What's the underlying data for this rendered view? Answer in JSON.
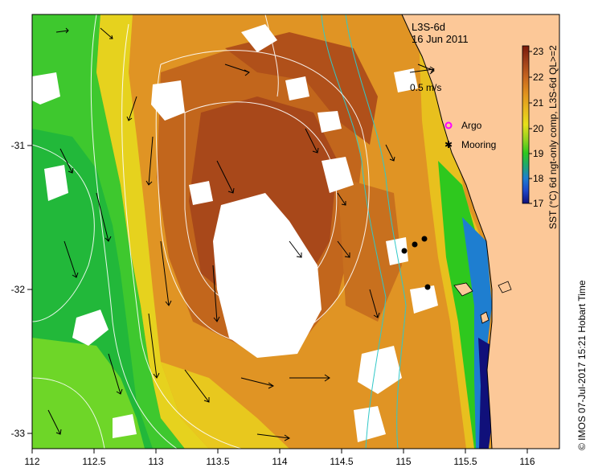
{
  "map": {
    "title_line1": "L3S-6d",
    "title_line2": "16 Jun 2011",
    "scale_label": "0.5 m/s",
    "x_ticks": [
      "112",
      "112.5",
      "113",
      "113.5",
      "114",
      "114.5",
      "115",
      "115.5",
      "116"
    ],
    "y_ticks": [
      "-31",
      "-32",
      "-33"
    ],
    "legend": [
      {
        "label": "Argo",
        "color": "#ff00ff"
      },
      {
        "label": "Mooring",
        "color": "#000000"
      }
    ],
    "colorbar": {
      "label": "SST (°C) 6d ngt-only comp, L3S-6d QL>=2",
      "ticks": [
        "23",
        "22",
        "21",
        "20",
        "19",
        "18",
        "17"
      ],
      "colors": [
        "#7a1a0a",
        "#a0401a",
        "#c8661e",
        "#e0901e",
        "#e8b81e",
        "#e6e01a",
        "#8ed21e",
        "#2ec81e",
        "#1ea86e",
        "#1e7ed0",
        "#1e46c8",
        "#10107a"
      ]
    },
    "land_color": "#fcc898",
    "credit": "© IMOS 07-Jul-2017 15:21 Hobart Time"
  }
}
